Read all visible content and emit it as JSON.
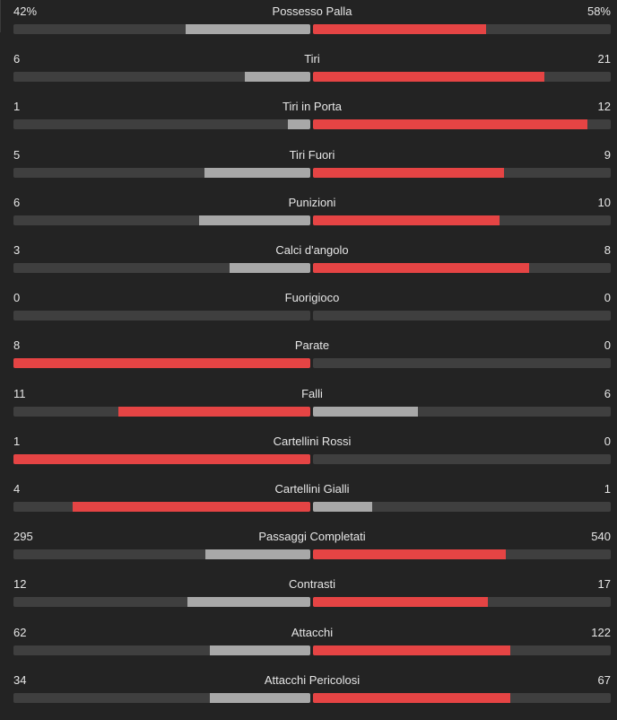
{
  "stats": [
    {
      "label": "Possesso Palla",
      "home": "42%",
      "away": "58%",
      "home_share": 0.42,
      "away_share": 0.58
    },
    {
      "label": "Tiri",
      "home": "6",
      "away": "21",
      "home_share": 0.222,
      "away_share": 0.778
    },
    {
      "label": "Tiri in Porta",
      "home": "1",
      "away": "12",
      "home_share": 0.077,
      "away_share": 0.923
    },
    {
      "label": "Tiri Fuori",
      "home": "5",
      "away": "9",
      "home_share": 0.357,
      "away_share": 0.643
    },
    {
      "label": "Punizioni",
      "home": "6",
      "away": "10",
      "home_share": 0.375,
      "away_share": 0.625
    },
    {
      "label": "Calci d'angolo",
      "home": "3",
      "away": "8",
      "home_share": 0.273,
      "away_share": 0.727
    },
    {
      "label": "Fuorigioco",
      "home": "0",
      "away": "0",
      "home_share": 0,
      "away_share": 0
    },
    {
      "label": "Parate",
      "home": "8",
      "away": "0",
      "home_share": 1,
      "away_share": 0
    },
    {
      "label": "Falli",
      "home": "11",
      "away": "6",
      "home_share": 0.647,
      "away_share": 0.353
    },
    {
      "label": "Cartellini Rossi",
      "home": "1",
      "away": "0",
      "home_share": 1,
      "away_share": 0
    },
    {
      "label": "Cartellini Gialli",
      "home": "4",
      "away": "1",
      "home_share": 0.8,
      "away_share": 0.2
    },
    {
      "label": "Passaggi Completati",
      "home": "295",
      "away": "540",
      "home_share": 0.353,
      "away_share": 0.647
    },
    {
      "label": "Contrasti",
      "home": "12",
      "away": "17",
      "home_share": 0.414,
      "away_share": 0.586
    },
    {
      "label": "Attacchi",
      "home": "62",
      "away": "122",
      "home_share": 0.337,
      "away_share": 0.663
    },
    {
      "label": "Attacchi Pericolosi",
      "home": "34",
      "away": "67",
      "home_share": 0.337,
      "away_share": 0.663
    }
  ],
  "colors": {
    "background": "#232323",
    "track": "#3f3f3f",
    "leader": "#e54444",
    "trailer": "#a8a8a8",
    "text": "#e6e6e6"
  }
}
